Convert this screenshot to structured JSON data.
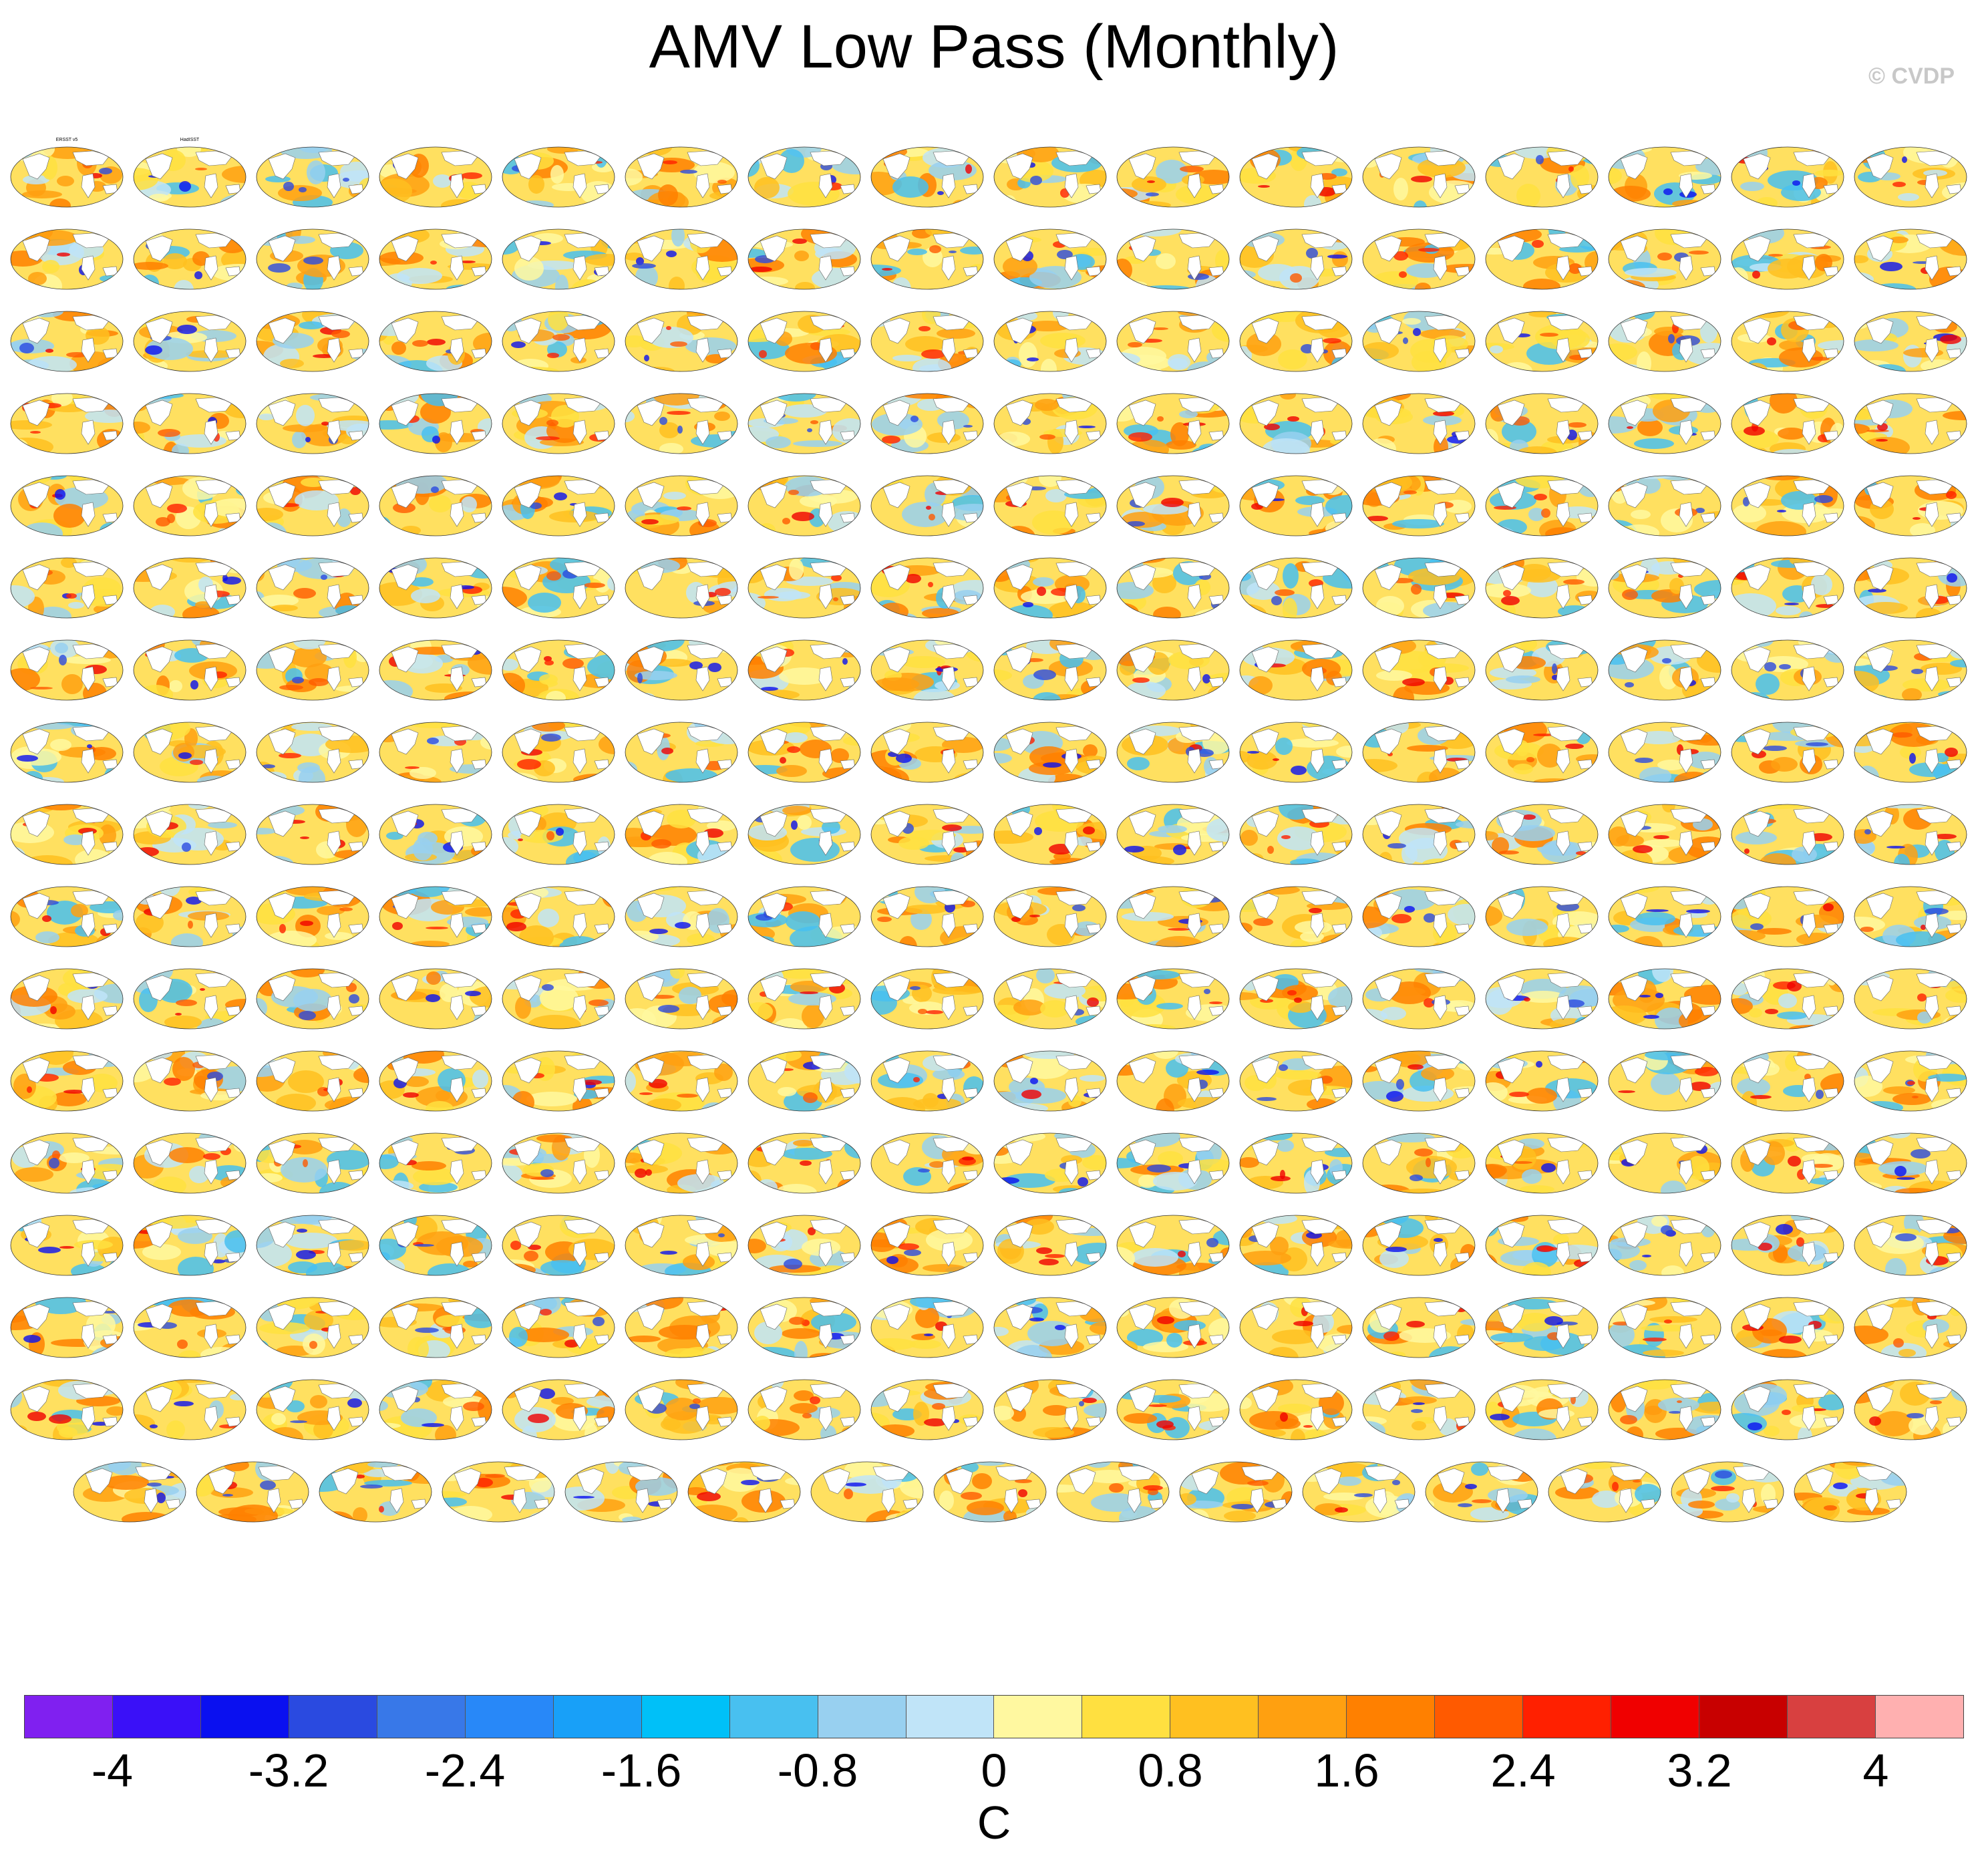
{
  "title": "AMV Low Pass (Monthly)",
  "copyright": "© CVDP",
  "units": "C",
  "colorbar": {
    "ticks": [
      "-4",
      "-3.2",
      "-2.4",
      "-1.6",
      "-0.8",
      "0",
      "0.8",
      "1.6",
      "2.4",
      "3.2",
      "4"
    ],
    "colors": [
      "#8020f0",
      "#3a10f8",
      "#0a10f0",
      "#2a4ae0",
      "#3878e8",
      "#2888f8",
      "#18a0f8",
      "#00c0f8",
      "#48c0f0",
      "#98d0f0",
      "#c0e4f8",
      "#fff8a0",
      "#ffe040",
      "#ffc020",
      "#ffa010",
      "#ff8000",
      "#ff5a00",
      "#ff2000",
      "#f00000",
      "#c80000",
      "#d84040",
      "#ffb0b0"
    ]
  },
  "grid": {
    "rows": 17,
    "cols": 16,
    "last_row_count": 15,
    "first_labels": [
      "ERSST v5",
      "HadISST"
    ]
  }
}
